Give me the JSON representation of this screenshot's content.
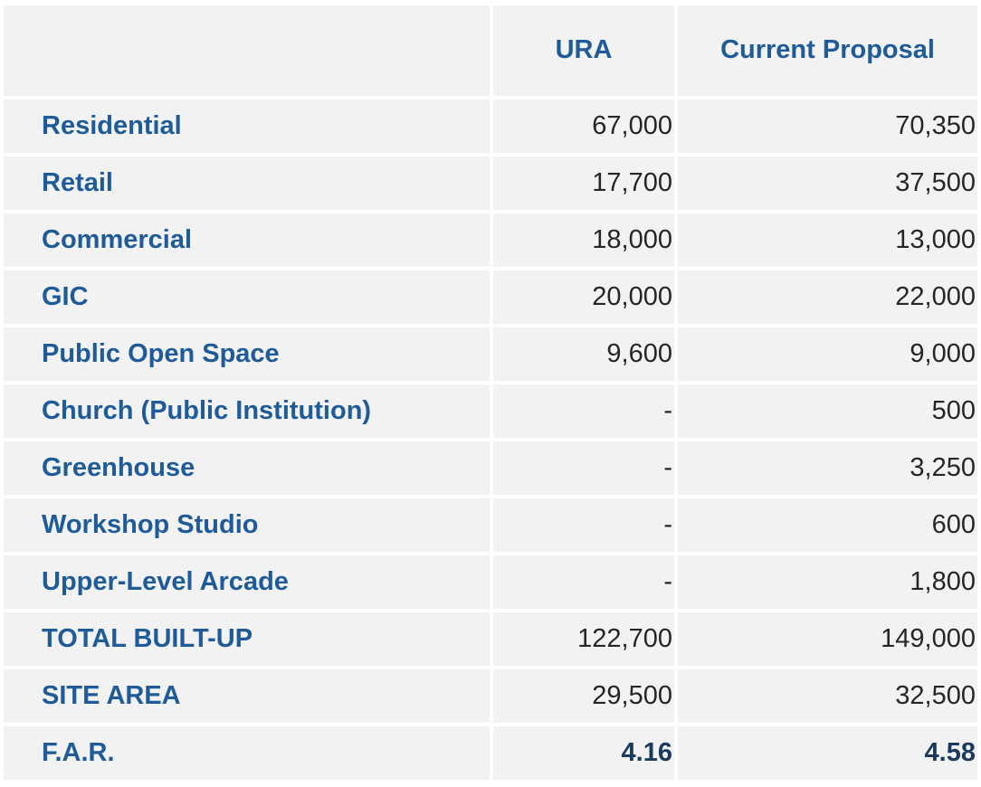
{
  "table": {
    "headers": [
      "",
      "URA",
      "Current Proposal"
    ],
    "rows": [
      {
        "label": "Residential",
        "ura": "67,000",
        "proposal": "70,350"
      },
      {
        "label": "Retail",
        "ura": "17,700",
        "proposal": "37,500"
      },
      {
        "label": "Commercial",
        "ura": "18,000",
        "proposal": "13,000"
      },
      {
        "label": "GIC",
        "ura": "20,000",
        "proposal": "22,000"
      },
      {
        "label": "Public Open Space",
        "ura": "9,600",
        "proposal": "9,000"
      },
      {
        "label": "Church (Public Institution)",
        "ura": "-",
        "proposal": "500"
      },
      {
        "label": "Greenhouse",
        "ura": "-",
        "proposal": "3,250"
      },
      {
        "label": "Workshop Studio",
        "ura": "-",
        "proposal": "600"
      },
      {
        "label": "Upper-Level Arcade",
        "ura": "-",
        "proposal": "1,800"
      },
      {
        "label": "TOTAL BUILT-UP",
        "ura": "122,700",
        "proposal": "149,000"
      },
      {
        "label": "SITE AREA",
        "ura": "29,500",
        "proposal": "32,500"
      },
      {
        "label": "F.A.R.",
        "ura": "4.16",
        "proposal": "4.58"
      }
    ]
  },
  "colors": {
    "header_text": "#1f5b98",
    "cell_background": "#f2f2f2",
    "value_text": "#262626",
    "bold_value_text": "#1b3a5c"
  }
}
